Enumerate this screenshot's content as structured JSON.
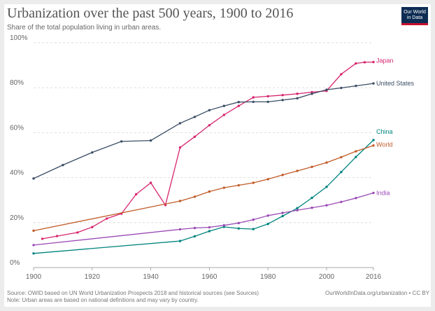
{
  "header": {
    "title": "Urbanization over the past 500 years, 1900 to 2016",
    "subtitle": "Share of the total population living in urban areas.",
    "logo_line1": "Our World",
    "logo_line2": "in Data"
  },
  "footer": {
    "source": "Source: OWID based on UN World Urbanization Prospects 2018 and historical sources (see Sources)",
    "note": "Note: Urban areas are based on national definitions and may vary by country.",
    "credit": "OurWorldInData.org/urbanization • CC BY"
  },
  "chart_data": {
    "type": "line",
    "title": "Urbanization over the past 500 years, 1900 to 2016",
    "subtitle": "Share of the total population living in urban areas.",
    "xlim": [
      1900,
      2016
    ],
    "ylim": [
      0,
      100
    ],
    "x_ticks": [
      1900,
      1920,
      1940,
      1960,
      1980,
      2000,
      2016
    ],
    "y_ticks": [
      0,
      20,
      40,
      60,
      80,
      100
    ],
    "y_tick_labels": [
      "0%",
      "20%",
      "40%",
      "60%",
      "80%",
      "100%"
    ],
    "grid": "horizontal dashed",
    "series": [
      {
        "name": "Japan",
        "color": "#d6246e",
        "points": [
          [
            1903,
            12.8
          ],
          [
            1908,
            14
          ],
          [
            1915,
            15.6
          ],
          [
            1920,
            18
          ],
          [
            1925,
            21.8
          ],
          [
            1930,
            24
          ],
          [
            1935,
            32.6
          ],
          [
            1940,
            37.7
          ],
          [
            1945,
            27.8
          ],
          [
            1950,
            53.4
          ],
          [
            1955,
            58.2
          ],
          [
            1960,
            63.3
          ],
          [
            1965,
            67.9
          ],
          [
            1970,
            71.9
          ],
          [
            1975,
            75.7
          ],
          [
            1980,
            76.2
          ],
          [
            1985,
            76.7
          ],
          [
            1990,
            77.3
          ],
          [
            1995,
            78
          ],
          [
            2000,
            78.6
          ],
          [
            2005,
            86
          ],
          [
            2010,
            90.8
          ],
          [
            2013,
            91.3
          ],
          [
            2016,
            91.4
          ]
        ]
      },
      {
        "name": "United States",
        "color": "#3c4e66",
        "points": [
          [
            1900,
            39.6
          ],
          [
            1910,
            45.6
          ],
          [
            1920,
            51.2
          ],
          [
            1930,
            56.1
          ],
          [
            1940,
            56.5
          ],
          [
            1950,
            64.2
          ],
          [
            1955,
            67
          ],
          [
            1960,
            70
          ],
          [
            1965,
            71.9
          ],
          [
            1970,
            73.6
          ],
          [
            1975,
            73.7
          ],
          [
            1980,
            73.7
          ],
          [
            1985,
            74.5
          ],
          [
            1990,
            75.3
          ],
          [
            1995,
            77.3
          ],
          [
            2000,
            79.1
          ],
          [
            2005,
            79.9
          ],
          [
            2010,
            80.8
          ],
          [
            2016,
            81.9
          ]
        ]
      },
      {
        "name": "China",
        "color": "#00847e",
        "points": [
          [
            1900,
            6.3
          ],
          [
            1950,
            11.8
          ],
          [
            1955,
            13.9
          ],
          [
            1960,
            16.2
          ],
          [
            1965,
            18.1
          ],
          [
            1970,
            17.4
          ],
          [
            1975,
            17.1
          ],
          [
            1980,
            19.4
          ],
          [
            1985,
            22.9
          ],
          [
            1990,
            26.4
          ],
          [
            1995,
            31
          ],
          [
            2000,
            35.9
          ],
          [
            2005,
            42.5
          ],
          [
            2010,
            49.2
          ],
          [
            2016,
            56.7
          ]
        ]
      },
      {
        "name": "World",
        "color": "#c15b28",
        "points": [
          [
            1900,
            16.4
          ],
          [
            1950,
            29.6
          ],
          [
            1955,
            31.5
          ],
          [
            1960,
            33.8
          ],
          [
            1965,
            35.5
          ],
          [
            1970,
            36.6
          ],
          [
            1975,
            37.7
          ],
          [
            1980,
            39.3
          ],
          [
            1985,
            41.2
          ],
          [
            1990,
            43
          ],
          [
            1995,
            44.8
          ],
          [
            2000,
            46.7
          ],
          [
            2005,
            49.1
          ],
          [
            2010,
            51.7
          ],
          [
            2016,
            54.3
          ]
        ]
      },
      {
        "name": "India",
        "color": "#9a4ab5",
        "points": [
          [
            1900,
            10
          ],
          [
            1950,
            17
          ],
          [
            1955,
            17.6
          ],
          [
            1960,
            17.9
          ],
          [
            1965,
            18.8
          ],
          [
            1970,
            19.8
          ],
          [
            1975,
            21.3
          ],
          [
            1980,
            23.1
          ],
          [
            1985,
            24.3
          ],
          [
            1990,
            25.5
          ],
          [
            1995,
            26.6
          ],
          [
            2000,
            27.7
          ],
          [
            2005,
            29.2
          ],
          [
            2010,
            30.9
          ],
          [
            2016,
            33.2
          ]
        ]
      }
    ]
  }
}
